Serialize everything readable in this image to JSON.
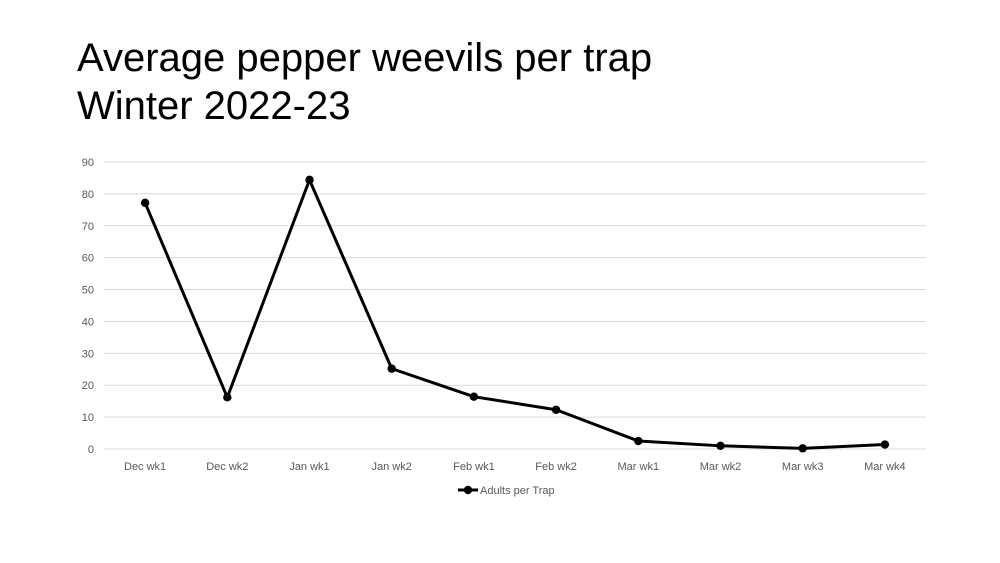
{
  "slide": {
    "title_line1": "Average pepper weevils per trap",
    "title_line2": "Winter 2022-23"
  },
  "chart_data": {
    "type": "line",
    "title": "",
    "xlabel": "",
    "ylabel": "",
    "categories": [
      "Dec wk1",
      "Dec wk2",
      "Jan wk1",
      "Jan wk2",
      "Feb wk1",
      "Feb wk2",
      "Mar wk1",
      "Mar wk2",
      "Mar wk3",
      "Mar wk4"
    ],
    "series": [
      {
        "name": "Adults per Trap",
        "color": "#000000",
        "marker": "circle",
        "values": [
          77.2,
          16.2,
          84.4,
          25.2,
          16.4,
          12.3,
          2.5,
          1.0,
          0.2,
          1.4
        ]
      }
    ],
    "ylim": [
      0,
      90
    ],
    "yticks": [
      0,
      10,
      20,
      30,
      40,
      50,
      60,
      70,
      80,
      90
    ],
    "grid": true,
    "gridline_color": "#d9d9d9",
    "legend_position": "bottom"
  }
}
